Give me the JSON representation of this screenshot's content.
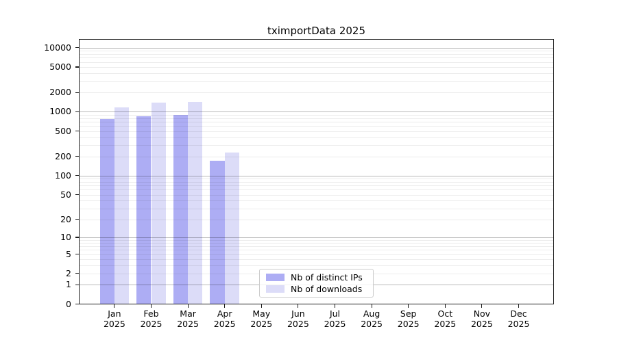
{
  "chart_data": {
    "type": "bar",
    "title": "tximportData 2025",
    "year_label": "2025",
    "categories": [
      "Jan",
      "Feb",
      "Mar",
      "Apr",
      "May",
      "Jun",
      "Jul",
      "Aug",
      "Sep",
      "Oct",
      "Nov",
      "Dec"
    ],
    "series": [
      {
        "name": "Nb of distinct IPs",
        "color": "#adadf4",
        "values": [
          780,
          860,
          900,
          170,
          null,
          null,
          null,
          null,
          null,
          null,
          null,
          null
        ]
      },
      {
        "name": "Nb of downloads",
        "color": "#dcdcf8",
        "values": [
          1170,
          1390,
          1410,
          230,
          null,
          null,
          null,
          null,
          null,
          null,
          null,
          null
        ]
      }
    ],
    "yscale": "log10(1+x)",
    "yticks": [
      10000,
      5000,
      2000,
      1000,
      500,
      200,
      100,
      50,
      20,
      10,
      5,
      2,
      1,
      0
    ],
    "ylim": [
      0,
      13700
    ],
    "grid": "on",
    "grid_major_at": [
      1,
      10,
      100,
      1000,
      10000
    ],
    "legend_position": "lower center inside plot",
    "colors": {
      "bar_distinct_ips": "#adadf4",
      "bar_downloads": "#dcdcf8",
      "grid_major": "#b8b8b8",
      "grid_minor": "#ececec",
      "spine": "#1a1a1a",
      "background": "#ffffff"
    }
  }
}
